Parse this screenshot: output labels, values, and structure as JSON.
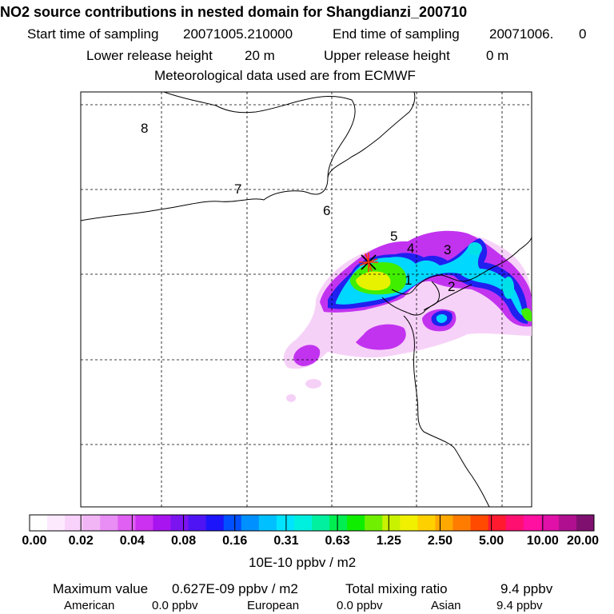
{
  "header": {
    "title": "NO2 source contributions in nested domain for Shangdianzi_200710",
    "start_label": "Start time of sampling",
    "start_value": "20071005.210000",
    "end_label": "End time of sampling",
    "end_value": "20071006.",
    "end_suffix": "0",
    "lower_label": "Lower release height",
    "lower_value": "20 m",
    "upper_label": "Upper release height",
    "upper_value": "0 m",
    "met_note": "Meteorological data used are from ECMWF"
  },
  "map": {
    "region_labels": [
      "8",
      "7",
      "6",
      "5",
      "4",
      "3",
      "1",
      "2"
    ],
    "colors": {
      "coast": "#000000",
      "grid": "#000000",
      "receptor": "#ff3300"
    }
  },
  "colorbar": {
    "colors": [
      "#ffffff",
      "#fde9fe",
      "#f9d2fb",
      "#f1b5f6",
      "#e88ef4",
      "#df60f2",
      "#cc30f0",
      "#a814f0",
      "#7c14f0",
      "#4e14f4",
      "#1c14fa",
      "#0050ff",
      "#0090ff",
      "#00c0ff",
      "#00e4ff",
      "#00f0e0",
      "#00f0a0",
      "#00ee50",
      "#10ee00",
      "#70f000",
      "#c8f200",
      "#f0f000",
      "#ffd000",
      "#ffa800",
      "#ff7c00",
      "#ff4a00",
      "#ff1a30",
      "#ff1070",
      "#ff10a0",
      "#e010a8",
      "#b01090",
      "#801070"
    ],
    "ticks": [
      "0.00",
      "0.02",
      "0.04",
      "0.08",
      "0.16",
      "0.31",
      "0.63",
      "1.25",
      "2.50",
      "5.00",
      "10.00",
      "20.00"
    ],
    "unit": "10E-10 ppbv / m2"
  },
  "summary": {
    "max_label": "Maximum value",
    "max_value": "0.627E-09 ppbv / m2",
    "total_label": "Total mixing ratio",
    "total_value": "9.4 ppbv",
    "american_label": "American",
    "american_value": "0.0 ppbv",
    "european_label": "European",
    "european_value": "0.0 ppbv",
    "asian_label": "Asian",
    "asian_value": "9.4 ppbv"
  }
}
